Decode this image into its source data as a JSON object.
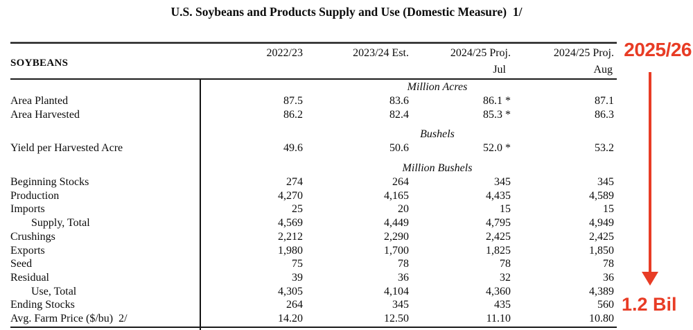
{
  "title": "U.S. Soybeans and Products Supply and Use (Domestic Measure)  1/",
  "section_label": "SOYBEANS",
  "header": {
    "columns": [
      "2022/23",
      "2023/24 Est.",
      "2024/25 Proj.",
      "2024/25 Proj."
    ],
    "subcolumns": [
      "Jul",
      "Aug"
    ]
  },
  "rows": [
    {
      "type": "unit",
      "label": "Million Acres"
    },
    {
      "type": "data",
      "label": "Area Planted",
      "values": [
        "87.5",
        "83.6",
        "86.1 *",
        "87.1"
      ]
    },
    {
      "type": "data",
      "label": "Area Harvested",
      "values": [
        "86.2",
        "82.4",
        "85.3 *",
        "86.3"
      ]
    },
    {
      "type": "spacer"
    },
    {
      "type": "unit",
      "label": "Bushels"
    },
    {
      "type": "data",
      "label": "Yield per Harvested Acre",
      "values": [
        "49.6",
        "50.6",
        "52.0 *",
        "53.2"
      ]
    },
    {
      "type": "spacer"
    },
    {
      "type": "unit",
      "label": "Million Bushels"
    },
    {
      "type": "data",
      "label": "Beginning Stocks",
      "values": [
        "274",
        "264",
        "345",
        "345"
      ]
    },
    {
      "type": "data",
      "label": "Production",
      "values": [
        "4,270",
        "4,165",
        "4,435",
        "4,589"
      ]
    },
    {
      "type": "data",
      "label": "Imports",
      "values": [
        "25",
        "20",
        "15",
        "15"
      ]
    },
    {
      "type": "data",
      "label": "Supply, Total",
      "indent": true,
      "values": [
        "4,569",
        "4,449",
        "4,795",
        "4,949"
      ]
    },
    {
      "type": "data",
      "label": "Crushings",
      "values": [
        "2,212",
        "2,290",
        "2,425",
        "2,425"
      ]
    },
    {
      "type": "data",
      "label": "Exports",
      "values": [
        "1,980",
        "1,700",
        "1,825",
        "1,850"
      ]
    },
    {
      "type": "data",
      "label": "Seed",
      "values": [
        "75",
        "78",
        "78",
        "78"
      ]
    },
    {
      "type": "data",
      "label": "Residual",
      "values": [
        "39",
        "36",
        "32",
        "36"
      ]
    },
    {
      "type": "data",
      "label": "Use, Total",
      "indent": true,
      "values": [
        "4,305",
        "4,104",
        "4,360",
        "4,389"
      ]
    },
    {
      "type": "data",
      "label": "Ending Stocks",
      "values": [
        "264",
        "345",
        "435",
        "560"
      ]
    },
    {
      "type": "data",
      "label": "Avg. Farm Price ($/bu)  2/",
      "values": [
        "14.20",
        "12.50",
        "11.10",
        "10.80"
      ]
    }
  ],
  "annotations": {
    "year_label": "2025/26",
    "value_label": "1.2 Bil",
    "arrow_direction": "down",
    "color": "#e83c25"
  }
}
